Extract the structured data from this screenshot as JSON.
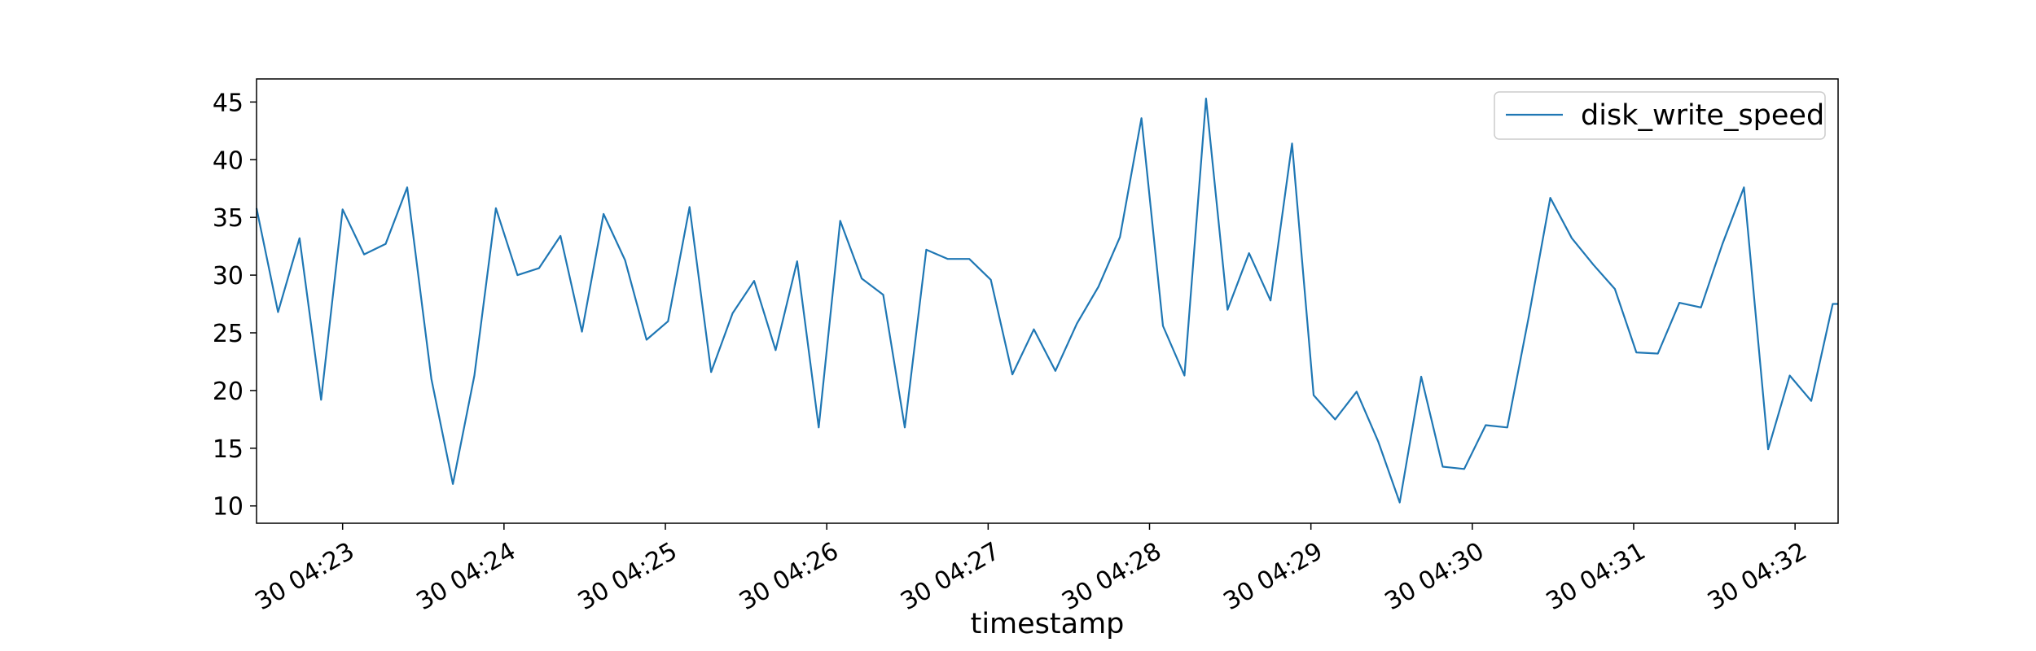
{
  "chart_data": {
    "type": "line",
    "xlabel": "timestamp",
    "ylabel": "",
    "x_tick_labels": [
      "30 04:23",
      "30 04:24",
      "30 04:25",
      "30 04:26",
      "30 04:27",
      "30 04:28",
      "30 04:29",
      "30 04:30",
      "30 04:31",
      "30 04:32"
    ],
    "x_tick_minutes": [
      23,
      24,
      25,
      26,
      27,
      28,
      29,
      30,
      31,
      32
    ],
    "y_ticks": [
      10,
      15,
      20,
      25,
      30,
      35,
      40,
      45
    ],
    "xlim": [
      "04:22:28",
      "04:32:16"
    ],
    "ylim": [
      8.5,
      47
    ],
    "legend": "top-right",
    "grid": false,
    "series": [
      {
        "name": "disk_write_speed",
        "color": "#1f77b4",
        "x": [
          "04:22:28",
          "04:22:36",
          "04:22:44",
          "04:22:52",
          "04:23:00",
          "04:23:08",
          "04:23:16",
          "04:23:24",
          "04:23:33",
          "04:23:41",
          "04:23:49",
          "04:23:57",
          "04:24:05",
          "04:24:13",
          "04:24:21",
          "04:24:29",
          "04:24:37",
          "04:24:45",
          "04:24:53",
          "04:25:01",
          "04:25:09",
          "04:25:17",
          "04:25:25",
          "04:25:33",
          "04:25:41",
          "04:25:49",
          "04:25:57",
          "04:26:05",
          "04:26:13",
          "04:26:21",
          "04:26:29",
          "04:26:37",
          "04:26:45",
          "04:26:53",
          "04:27:01",
          "04:27:09",
          "04:27:17",
          "04:27:25",
          "04:27:33",
          "04:27:41",
          "04:27:49",
          "04:27:57",
          "04:28:05",
          "04:28:13",
          "04:28:21",
          "04:28:29",
          "04:28:37",
          "04:28:45",
          "04:28:53",
          "04:29:01",
          "04:29:09",
          "04:29:17",
          "04:29:25",
          "04:29:33",
          "04:29:41",
          "04:29:49",
          "04:29:57",
          "04:30:05",
          "04:30:13",
          "04:30:21",
          "04:30:29",
          "04:30:37",
          "04:30:45",
          "04:30:53",
          "04:31:01",
          "04:31:09",
          "04:31:17",
          "04:31:25",
          "04:31:33",
          "04:31:41",
          "04:31:50",
          "04:31:58",
          "04:32:06",
          "04:32:14",
          "04:32:16"
        ],
        "y": [
          35.8,
          26.8,
          33.2,
          19.2,
          35.7,
          31.8,
          32.7,
          37.6,
          21.0,
          11.9,
          21.3,
          35.8,
          30.0,
          30.6,
          33.4,
          25.1,
          35.3,
          31.3,
          24.4,
          26.0,
          35.9,
          21.6,
          26.7,
          29.5,
          23.5,
          31.2,
          16.8,
          34.7,
          29.7,
          28.3,
          16.8,
          32.2,
          31.4,
          31.4,
          29.6,
          21.4,
          25.3,
          21.7,
          25.8,
          29.0,
          33.3,
          43.6,
          25.6,
          21.3,
          45.3,
          27.0,
          31.9,
          27.8,
          41.4,
          19.6,
          17.5,
          19.9,
          15.6,
          10.3,
          21.2,
          13.4,
          13.2,
          17.0,
          16.8,
          26.4,
          36.7,
          33.2,
          30.9,
          28.8,
          23.3,
          23.2,
          27.6,
          27.2,
          32.7,
          37.6,
          14.9,
          21.3,
          19.1,
          27.5,
          27.5
        ]
      }
    ]
  }
}
